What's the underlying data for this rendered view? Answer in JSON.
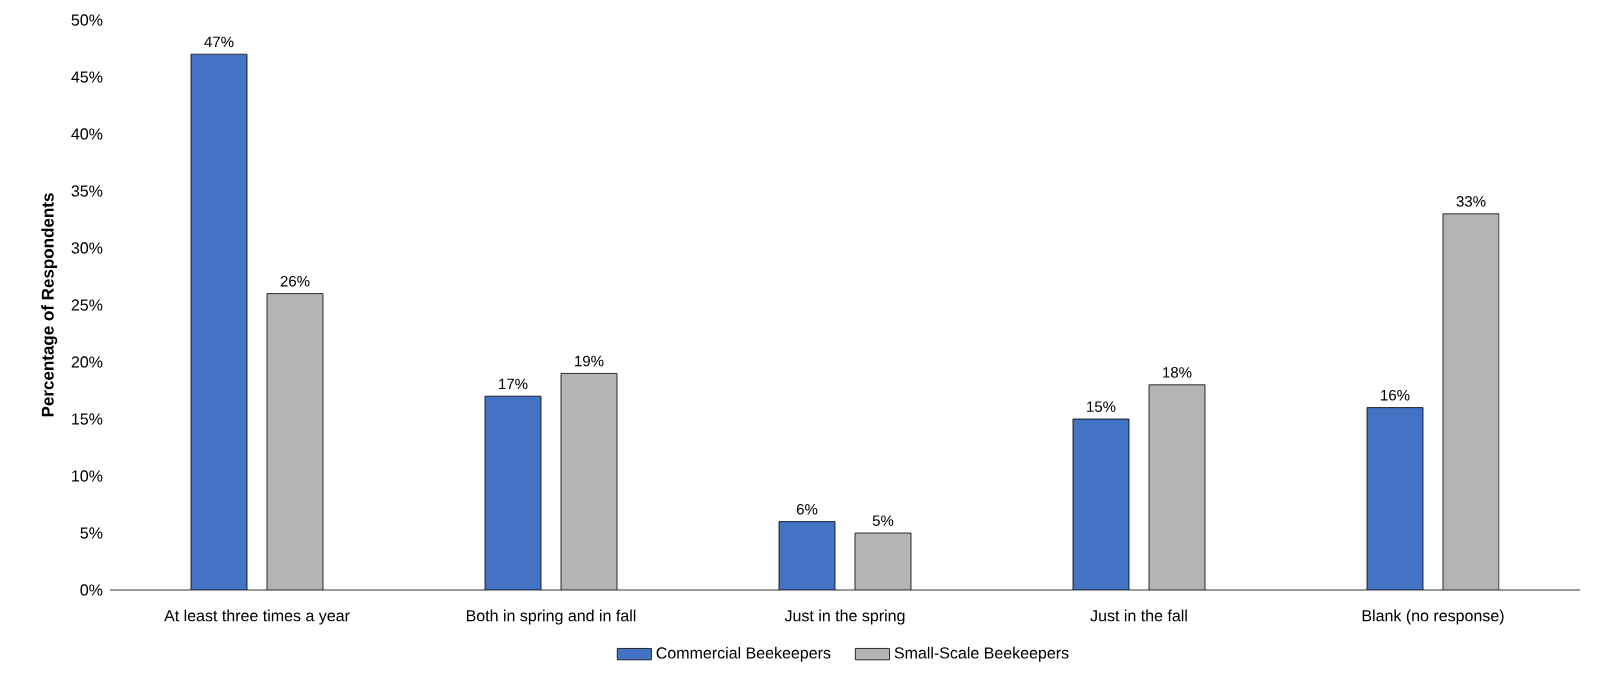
{
  "chart_data": {
    "type": "bar",
    "ylabel": "Percentage of Respondents",
    "categories": [
      "At least three times a year",
      "Both in spring and in fall",
      "Just in the spring",
      "Just in the fall",
      "Blank (no response)"
    ],
    "series": [
      {
        "name": "Commercial Beekeepers",
        "color": "#4472c4",
        "values": [
          47,
          17,
          6,
          15,
          16
        ],
        "value_labels": [
          "47%",
          "17%",
          "6%",
          "15%",
          "16%"
        ]
      },
      {
        "name": "Small-Scale Beekeepers",
        "color": "#b4b4b4",
        "values": [
          26,
          19,
          5,
          18,
          33
        ],
        "value_labels": [
          "26%",
          "19%",
          "5%",
          "18%",
          "33%"
        ]
      }
    ],
    "ylim": [
      0,
      50
    ],
    "yticks": [
      {
        "value": 0,
        "label": "0%"
      },
      {
        "value": 5,
        "label": "5%"
      },
      {
        "value": 10,
        "label": "10%"
      },
      {
        "value": 15,
        "label": "15%"
      },
      {
        "value": 20,
        "label": "20%"
      },
      {
        "value": 25,
        "label": "25%"
      },
      {
        "value": 30,
        "label": "30%"
      },
      {
        "value": 35,
        "label": "35%"
      },
      {
        "value": 40,
        "label": "40%"
      },
      {
        "value": 45,
        "label": "45%"
      },
      {
        "value": 50,
        "label": "50%"
      }
    ],
    "grid": false,
    "legend": "bottom"
  }
}
